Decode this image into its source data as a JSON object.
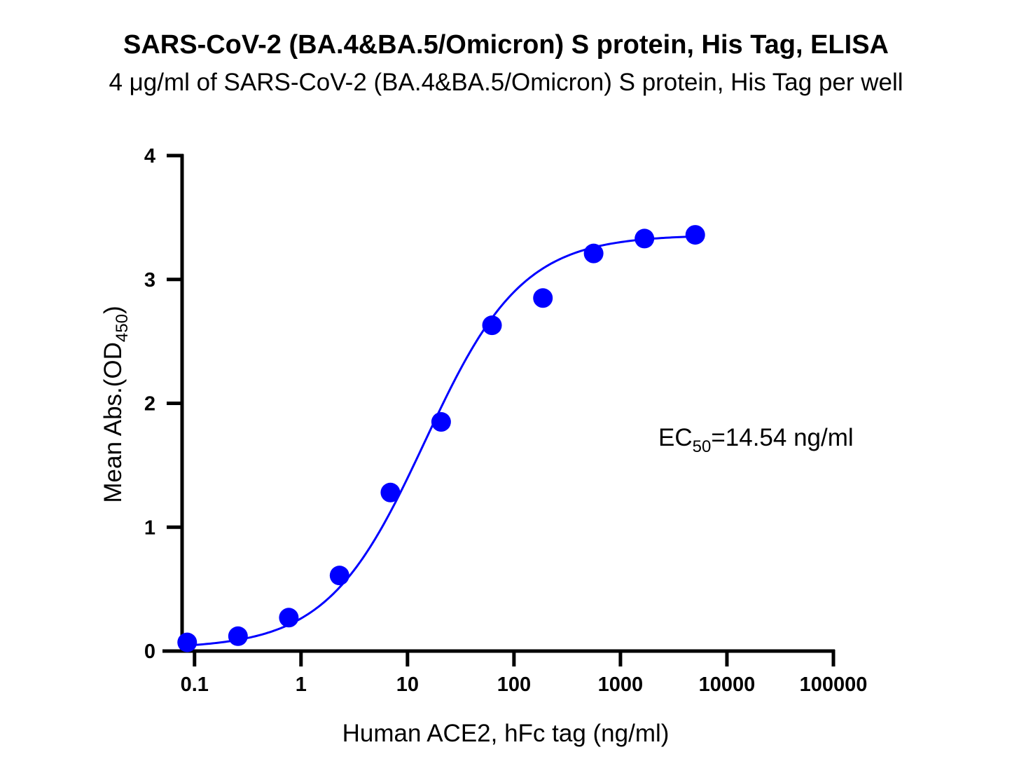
{
  "chart_data": {
    "type": "scatter",
    "title": "SARS-CoV-2 (BA.4&BA.5/Omicron) S protein, His Tag, ELISA",
    "subtitle": "4 μg/ml of SARS-CoV-2 (BA.4&BA.5/Omicron) S protein, His Tag per well",
    "xlabel": "Human ACE2, hFc tag (ng/ml)",
    "ylabel_main": "Mean Abs.(OD",
    "ylabel_sub": "450",
    "ylabel_end": ")",
    "xscale": "log",
    "xlim": [
      0.05,
      100000
    ],
    "ylim": [
      0,
      4
    ],
    "xticks": [
      0.1,
      1,
      10,
      100,
      1000,
      10000,
      100000
    ],
    "xtick_labels": [
      "0.1",
      "1",
      "10",
      "100",
      "1000",
      "10000",
      "100000"
    ],
    "yticks": [
      0,
      1,
      2,
      3,
      4
    ],
    "ytick_labels": [
      "0",
      "1",
      "2",
      "3",
      "4"
    ],
    "grid": false,
    "legend": "none",
    "series": [
      {
        "color": "#0000ff",
        "x": [
          0.0853,
          0.256,
          0.768,
          2.3,
          6.91,
          20.7,
          62.2,
          187,
          560,
          1680,
          5040
        ],
        "y": [
          0.07,
          0.12,
          0.27,
          0.61,
          1.28,
          1.85,
          2.63,
          2.85,
          3.21,
          3.33,
          3.36
        ]
      }
    ],
    "fit_curve": {
      "model": "4PL",
      "bottom": 0.02,
      "top": 3.36,
      "ec50": 14.54,
      "hill": 0.95
    },
    "annotation": {
      "main": "EC",
      "sub": "50",
      "rest": "=14.54 ng/ml"
    }
  }
}
